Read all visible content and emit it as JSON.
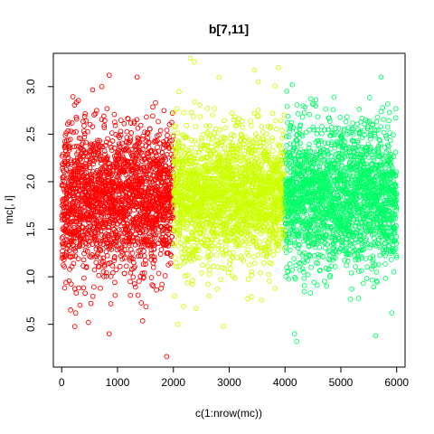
{
  "chart_data": {
    "type": "scatter",
    "title": "b[7,11]",
    "xlabel": "c(1:nrow(mc))",
    "ylabel": "mc[, i]",
    "xlim": [
      -150,
      6150
    ],
    "ylim": [
      0.05,
      3.35
    ],
    "x_ticks": [
      0,
      1000,
      2000,
      3000,
      4000,
      5000,
      6000
    ],
    "y_ticks": [
      0.5,
      1.0,
      1.5,
      2.0,
      2.5,
      3.0
    ],
    "grid": false,
    "legend": "none",
    "marker": "open-circle",
    "series": [
      {
        "color": "#ff0000",
        "x_range": [
          1,
          2000
        ],
        "n": 2000,
        "center": 1.8,
        "spread": 0.38,
        "y_min": 0.15,
        "y_max": 3.12,
        "notable_points": [
          [
            1880,
            0.16
          ],
          [
            850,
            0.4
          ],
          [
            160,
            0.65
          ],
          [
            250,
            0.62
          ],
          [
            480,
            0.52
          ],
          [
            1350,
            3.1
          ],
          [
            850,
            3.12
          ]
        ]
      },
      {
        "color": "#ccff00",
        "x_range": [
          2001,
          4000
        ],
        "n": 2000,
        "center": 1.85,
        "spread": 0.35,
        "y_min": 0.45,
        "y_max": 3.3,
        "notable_points": [
          [
            2300,
            3.3
          ],
          [
            2380,
            3.26
          ],
          [
            3880,
            3.2
          ],
          [
            3520,
            3.05
          ],
          [
            2080,
            0.5
          ],
          [
            2900,
            0.48
          ]
        ]
      },
      {
        "color": "#00ff66",
        "x_range": [
          4001,
          6000
        ],
        "n": 2000,
        "center": 1.85,
        "spread": 0.37,
        "y_min": 0.3,
        "y_max": 3.1,
        "notable_points": [
          [
            4210,
            0.32
          ],
          [
            4170,
            0.4
          ],
          [
            5620,
            0.38
          ],
          [
            5720,
            3.1
          ],
          [
            5910,
            0.62
          ],
          [
            4130,
            3.02
          ]
        ]
      }
    ]
  }
}
